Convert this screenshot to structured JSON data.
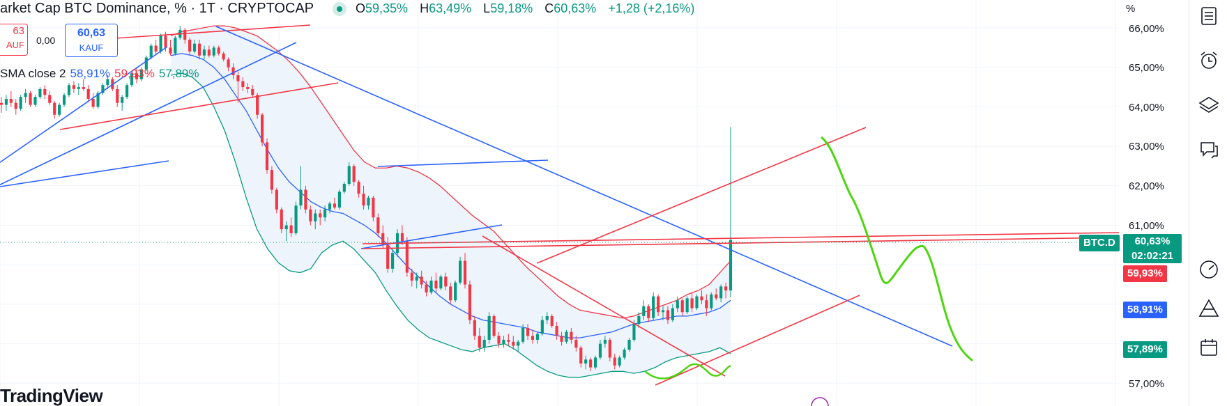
{
  "header": {
    "title": "arket Cap BTC Dominance, % · 1T · CRYPTOCAP",
    "ohlc": {
      "o_label": "O",
      "o": "59,35%",
      "h_label": "H",
      "h": "63,49%",
      "l_label": "L",
      "l": "59,18%",
      "c_label": "C",
      "c": "60,63%",
      "change": "+1,28 (+2,16%)"
    }
  },
  "trade": {
    "sell_price": "63",
    "sell_label": "AUF",
    "spread": "0,00",
    "buy_price": "60,63",
    "buy_label": "KAUF"
  },
  "indicator": {
    "name": "SMA close 2",
    "v1": "58,91%",
    "v2": "59,93%",
    "v3": "57,89%"
  },
  "brand": "TradingView",
  "price_axis": {
    "unit": "%",
    "ticks": [
      "66,00%",
      "65,00%",
      "64,00%",
      "63,00%",
      "62,00%",
      "61,00%",
      "57,00%"
    ],
    "symbol_tag": "BTC.D",
    "last_price": "60,63%",
    "countdown": "02:02:21",
    "tag_red": "59,93%",
    "tag_blue": "58,91%",
    "tag_green": "57,89%"
  },
  "colors": {
    "up": "#089981",
    "down": "#f23645",
    "blue": "#2962ff",
    "green_drawing": "#4cd60e",
    "band_fill": "#eef4fb"
  },
  "toolbar": [
    "list-icon",
    "alarm-clock-icon",
    "layers-icon",
    "chat-icon",
    "gauge-icon",
    "pyramid-icon",
    "calendar-icon"
  ],
  "chart_data": {
    "type": "candlestick",
    "y_unit": "%",
    "ylim": [
      56.7,
      66.6
    ],
    "candles": [
      [
        64.1,
        64.25,
        63.85,
        64.05
      ],
      [
        64.05,
        64.3,
        63.9,
        64.2
      ],
      [
        64.2,
        64.4,
        64.0,
        64.1
      ],
      [
        64.1,
        64.2,
        63.8,
        63.95
      ],
      [
        63.95,
        64.3,
        63.9,
        64.25
      ],
      [
        64.25,
        64.45,
        64.1,
        64.35
      ],
      [
        64.35,
        64.4,
        64.0,
        64.05
      ],
      [
        64.05,
        64.3,
        64.0,
        64.25
      ],
      [
        64.25,
        64.5,
        64.2,
        64.45
      ],
      [
        64.45,
        64.55,
        64.2,
        64.3
      ],
      [
        64.3,
        64.4,
        64.05,
        64.1
      ],
      [
        64.1,
        64.15,
        63.7,
        63.8
      ],
      [
        63.8,
        64.1,
        63.75,
        64.05
      ],
      [
        64.05,
        64.35,
        64.0,
        64.3
      ],
      [
        64.3,
        64.6,
        64.25,
        64.55
      ],
      [
        64.55,
        64.65,
        64.35,
        64.45
      ],
      [
        64.45,
        64.6,
        64.3,
        64.5
      ],
      [
        64.5,
        64.7,
        64.4,
        64.45
      ],
      [
        64.45,
        64.55,
        64.15,
        64.2
      ],
      [
        64.2,
        64.35,
        63.95,
        64.0
      ],
      [
        64.0,
        64.4,
        63.95,
        64.35
      ],
      [
        64.35,
        64.6,
        64.3,
        64.55
      ],
      [
        64.55,
        64.8,
        64.45,
        64.7
      ],
      [
        64.7,
        64.75,
        64.4,
        64.45
      ],
      [
        64.45,
        64.55,
        64.0,
        64.1
      ],
      [
        64.1,
        64.3,
        63.9,
        64.25
      ],
      [
        64.25,
        64.6,
        64.2,
        64.55
      ],
      [
        64.55,
        64.9,
        64.5,
        64.85
      ],
      [
        64.85,
        65.0,
        64.6,
        64.7
      ],
      [
        64.7,
        65.0,
        64.65,
        64.95
      ],
      [
        64.95,
        65.3,
        64.9,
        65.25
      ],
      [
        65.25,
        65.6,
        65.2,
        65.55
      ],
      [
        65.55,
        65.7,
        65.3,
        65.4
      ],
      [
        65.4,
        65.85,
        65.35,
        65.8
      ],
      [
        65.8,
        65.9,
        65.4,
        65.5
      ],
      [
        65.5,
        65.7,
        65.3,
        65.35
      ],
      [
        65.35,
        65.8,
        65.3,
        65.75
      ],
      [
        65.75,
        66.05,
        65.7,
        65.95
      ],
      [
        65.95,
        66.0,
        65.6,
        65.7
      ],
      [
        65.7,
        65.75,
        65.3,
        65.4
      ],
      [
        65.4,
        65.7,
        65.35,
        65.6
      ],
      [
        65.6,
        65.7,
        65.2,
        65.3
      ],
      [
        65.3,
        65.55,
        65.2,
        65.45
      ],
      [
        65.45,
        65.55,
        65.25,
        65.3
      ],
      [
        65.3,
        65.55,
        65.25,
        65.5
      ],
      [
        65.5,
        65.55,
        65.3,
        65.35
      ],
      [
        65.35,
        65.4,
        65.15,
        65.2
      ],
      [
        65.2,
        65.25,
        64.9,
        65.0
      ],
      [
        65.0,
        65.1,
        64.7,
        64.8
      ],
      [
        64.8,
        64.9,
        64.1,
        64.65
      ],
      [
        64.65,
        64.75,
        64.4,
        64.5
      ],
      [
        64.5,
        64.6,
        64.35,
        64.45
      ],
      [
        64.45,
        64.55,
        64.25,
        64.3
      ],
      [
        64.3,
        64.35,
        63.7,
        63.8
      ],
      [
        63.8,
        63.85,
        63.0,
        63.1
      ],
      [
        63.1,
        63.2,
        62.3,
        62.4
      ],
      [
        62.4,
        62.5,
        61.8,
        61.9
      ],
      [
        61.9,
        61.95,
        61.3,
        61.4
      ],
      [
        61.4,
        61.45,
        60.8,
        60.9
      ],
      [
        60.9,
        61.1,
        60.6,
        61.0
      ],
      [
        61.0,
        61.2,
        60.7,
        60.8
      ],
      [
        60.8,
        61.6,
        60.75,
        61.5
      ],
      [
        61.5,
        62.5,
        61.4,
        61.9
      ],
      [
        61.9,
        62.0,
        61.3,
        61.4
      ],
      [
        61.4,
        61.5,
        61.0,
        61.1
      ],
      [
        61.1,
        61.4,
        60.9,
        61.3
      ],
      [
        61.3,
        61.4,
        61.0,
        61.2
      ],
      [
        61.2,
        61.5,
        61.1,
        61.4
      ],
      [
        61.4,
        61.6,
        61.3,
        61.55
      ],
      [
        61.55,
        61.7,
        61.4,
        61.45
      ],
      [
        61.45,
        61.9,
        61.4,
        61.85
      ],
      [
        61.85,
        62.1,
        61.8,
        62.05
      ],
      [
        62.05,
        62.6,
        62.0,
        62.5
      ],
      [
        62.5,
        62.55,
        62.0,
        62.1
      ],
      [
        62.1,
        62.15,
        61.7,
        61.8
      ],
      [
        61.8,
        62.0,
        61.4,
        61.5
      ],
      [
        61.5,
        61.75,
        61.4,
        61.7
      ],
      [
        61.7,
        61.75,
        61.1,
        61.2
      ],
      [
        61.2,
        61.3,
        60.7,
        60.8
      ],
      [
        60.8,
        61.0,
        60.4,
        60.5
      ],
      [
        60.5,
        60.7,
        59.8,
        59.9
      ],
      [
        59.9,
        60.4,
        59.8,
        60.3
      ],
      [
        60.3,
        60.9,
        60.2,
        60.8
      ],
      [
        60.8,
        61.0,
        60.5,
        60.6
      ],
      [
        60.6,
        60.7,
        59.7,
        59.8
      ],
      [
        59.8,
        59.9,
        59.45,
        59.6
      ],
      [
        59.6,
        59.8,
        59.4,
        59.7
      ],
      [
        59.7,
        59.85,
        59.4,
        59.5
      ],
      [
        59.5,
        59.6,
        59.2,
        59.3
      ],
      [
        59.3,
        59.7,
        59.25,
        59.6
      ],
      [
        59.6,
        59.8,
        59.3,
        59.4
      ],
      [
        59.4,
        59.75,
        59.35,
        59.7
      ],
      [
        59.7,
        59.8,
        59.35,
        59.45
      ],
      [
        59.45,
        59.55,
        59.0,
        59.1
      ],
      [
        59.1,
        59.6,
        59.05,
        59.55
      ],
      [
        59.55,
        60.2,
        59.5,
        60.1
      ],
      [
        60.1,
        60.3,
        59.4,
        59.5
      ],
      [
        59.5,
        59.6,
        58.5,
        58.6
      ],
      [
        58.6,
        58.7,
        58.1,
        58.2
      ],
      [
        58.2,
        58.4,
        57.8,
        57.9
      ],
      [
        57.9,
        58.2,
        57.8,
        58.1
      ],
      [
        58.1,
        58.8,
        58.0,
        58.7
      ],
      [
        58.7,
        58.75,
        58.15,
        58.2
      ],
      [
        58.2,
        58.3,
        57.9,
        58.0
      ],
      [
        58.0,
        58.2,
        57.9,
        58.1
      ],
      [
        58.1,
        58.25,
        57.95,
        58.05
      ],
      [
        58.05,
        58.2,
        57.85,
        57.95
      ],
      [
        57.95,
        58.1,
        57.8,
        58.05
      ],
      [
        58.05,
        58.5,
        58.0,
        58.4
      ],
      [
        58.4,
        58.5,
        58.1,
        58.2
      ],
      [
        58.2,
        58.35,
        58.0,
        58.1
      ],
      [
        58.1,
        58.3,
        58.0,
        58.25
      ],
      [
        58.25,
        58.7,
        58.2,
        58.6
      ],
      [
        58.6,
        58.8,
        58.5,
        58.7
      ],
      [
        58.7,
        58.75,
        58.4,
        58.45
      ],
      [
        58.45,
        58.55,
        58.1,
        58.2
      ],
      [
        58.2,
        58.3,
        57.95,
        58.05
      ],
      [
        58.05,
        58.35,
        58.0,
        58.3
      ],
      [
        58.3,
        58.4,
        58.0,
        58.1
      ],
      [
        58.1,
        58.2,
        57.8,
        57.9
      ],
      [
        57.9,
        57.95,
        57.4,
        57.5
      ],
      [
        57.5,
        57.7,
        57.35,
        57.6
      ],
      [
        57.6,
        57.65,
        57.3,
        57.4
      ],
      [
        57.4,
        57.7,
        57.35,
        57.65
      ],
      [
        57.65,
        58.1,
        57.6,
        58.0
      ],
      [
        58.0,
        58.2,
        57.9,
        58.1
      ],
      [
        58.1,
        58.15,
        57.55,
        57.65
      ],
      [
        57.65,
        57.75,
        57.35,
        57.45
      ],
      [
        57.45,
        57.7,
        57.4,
        57.65
      ],
      [
        57.65,
        57.9,
        57.6,
        57.85
      ],
      [
        57.85,
        58.15,
        57.8,
        58.1
      ],
      [
        58.1,
        58.6,
        58.05,
        58.5
      ],
      [
        58.5,
        58.8,
        58.4,
        58.7
      ],
      [
        58.7,
        59.1,
        58.6,
        58.95
      ],
      [
        58.95,
        59.0,
        58.55,
        58.65
      ],
      [
        58.65,
        59.3,
        58.6,
        59.2
      ],
      [
        59.2,
        59.25,
        58.7,
        58.8
      ],
      [
        58.8,
        58.95,
        58.6,
        58.85
      ],
      [
        58.85,
        58.95,
        58.5,
        58.6
      ],
      [
        58.6,
        59.0,
        58.55,
        58.9
      ],
      [
        58.9,
        59.2,
        58.8,
        59.1
      ],
      [
        59.1,
        59.15,
        58.7,
        58.8
      ],
      [
        58.8,
        59.2,
        58.75,
        59.15
      ],
      [
        59.15,
        59.3,
        58.8,
        58.9
      ],
      [
        58.9,
        59.25,
        58.85,
        59.2
      ],
      [
        59.2,
        59.35,
        59.0,
        59.1
      ],
      [
        59.1,
        59.25,
        58.7,
        58.9
      ],
      [
        58.9,
        59.3,
        58.85,
        59.25
      ],
      [
        59.25,
        59.4,
        59.1,
        59.15
      ],
      [
        59.15,
        59.5,
        59.05,
        59.45
      ],
      [
        59.45,
        59.55,
        59.15,
        59.35
      ],
      [
        59.35,
        63.49,
        59.18,
        60.63
      ]
    ],
    "sma_red": [
      65.8,
      65.9,
      65.95,
      66.0,
      66.05,
      66.05,
      66.0,
      65.9,
      65.8,
      65.6,
      65.4,
      65.15,
      64.85,
      64.5,
      64.1,
      63.7,
      63.3,
      62.9,
      62.6,
      62.45,
      62.45,
      62.5,
      62.45,
      62.35,
      62.2,
      62.0,
      61.75,
      61.5,
      61.25,
      61.05,
      60.85,
      60.55,
      60.25,
      59.95,
      59.7,
      59.45,
      59.2,
      59.0,
      58.85,
      58.8,
      58.75,
      58.7,
      58.65,
      58.7,
      58.8,
      58.9,
      59.0,
      59.1,
      59.25,
      59.35,
      59.5,
      59.8,
      60.1
    ],
    "sma_blue": [
      65.3,
      65.35,
      65.3,
      65.2,
      65.0,
      64.7,
      64.3,
      63.9,
      63.4,
      62.9,
      62.45,
      62.1,
      61.85,
      61.6,
      61.45,
      61.35,
      61.3,
      61.15,
      61.0,
      60.8,
      60.55,
      60.25,
      59.95,
      59.7,
      59.45,
      59.2,
      59.0,
      58.85,
      58.7,
      58.6,
      58.55,
      58.5,
      58.45,
      58.4,
      58.3,
      58.25,
      58.2,
      58.15,
      58.15,
      58.2,
      58.25,
      58.3,
      58.4,
      58.5,
      58.55,
      58.6,
      58.65,
      58.7,
      58.7,
      58.75,
      58.8,
      58.9,
      59.1
    ],
    "sma_green": [
      64.8,
      64.85,
      64.75,
      64.5,
      64.0,
      63.4,
      62.6,
      61.7,
      60.9,
      60.4,
      60.05,
      59.85,
      59.8,
      59.9,
      60.3,
      60.5,
      60.6,
      60.4,
      60.1,
      59.8,
      59.35,
      58.95,
      58.6,
      58.35,
      58.15,
      58.05,
      57.95,
      57.85,
      57.8,
      57.9,
      57.95,
      58.0,
      57.85,
      57.65,
      57.45,
      57.3,
      57.2,
      57.15,
      57.15,
      57.2,
      57.25,
      57.3,
      57.3,
      57.25,
      57.3,
      57.4,
      57.55,
      57.65,
      57.7,
      57.75,
      57.8,
      57.9,
      57.75
    ]
  }
}
